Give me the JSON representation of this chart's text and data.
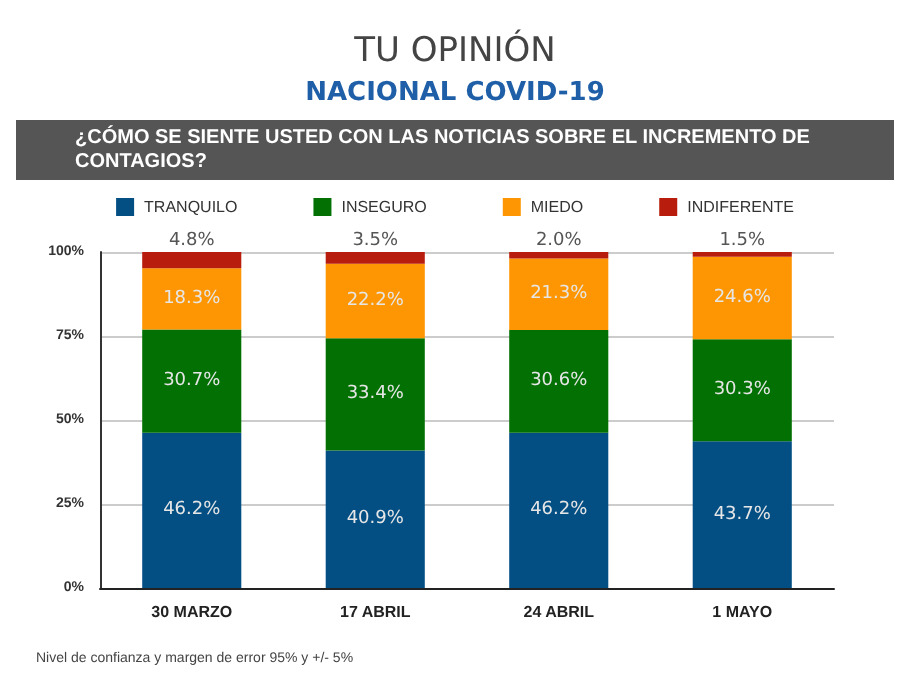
{
  "chart_data": {
    "type": "bar",
    "title": "TU OPINIÓN",
    "subtitle": "NACIONAL COVID-19",
    "annotations": [
      "¿CÓMO SE SIENTE USTED CON LAS NOTICIAS SOBRE EL INCREMENTO DE CONTAGIOS?",
      "Nivel de confianza y margen de error 95% y +/- 5%"
    ],
    "categories": [
      "30 MARZO",
      "17 ABRIL",
      "24 ABRIL",
      "1 MAYO"
    ],
    "stacked": true,
    "series": [
      {
        "name": "TRANQUILO",
        "color": "#034f84",
        "values": [
          46.2,
          40.9,
          46.2,
          43.7
        ],
        "value_labels": [
          "46.2%",
          "40.9%",
          "46.2%",
          "43.7%"
        ]
      },
      {
        "name": "INSEGURO",
        "color": "#027002",
        "values": [
          30.7,
          33.4,
          30.6,
          30.3
        ],
        "value_labels": [
          "30.7%",
          "33.4%",
          "30.6%",
          "30.3%"
        ]
      },
      {
        "name": "MIEDO",
        "color": "#fd9602",
        "values": [
          18.3,
          22.2,
          21.3,
          24.6
        ],
        "value_labels": [
          "18.3%",
          "22.2%",
          "21.3%",
          "24.6%"
        ]
      },
      {
        "name": "INDIFERENTE",
        "color": "#b71c0c",
        "values": [
          4.8,
          3.5,
          2.0,
          1.5
        ],
        "value_labels": [
          "4.8%",
          "3.5%",
          "2.0%",
          "1.5%"
        ]
      }
    ],
    "ylim": [
      0,
      100
    ],
    "yticks": [
      {
        "value": 0,
        "label": "0%"
      },
      {
        "value": 25,
        "label": "25%"
      },
      {
        "value": 50,
        "label": "50%"
      },
      {
        "value": 75,
        "label": "75%"
      },
      {
        "value": 100,
        "label": "100%"
      }
    ],
    "grid": "y",
    "legend": "top"
  }
}
